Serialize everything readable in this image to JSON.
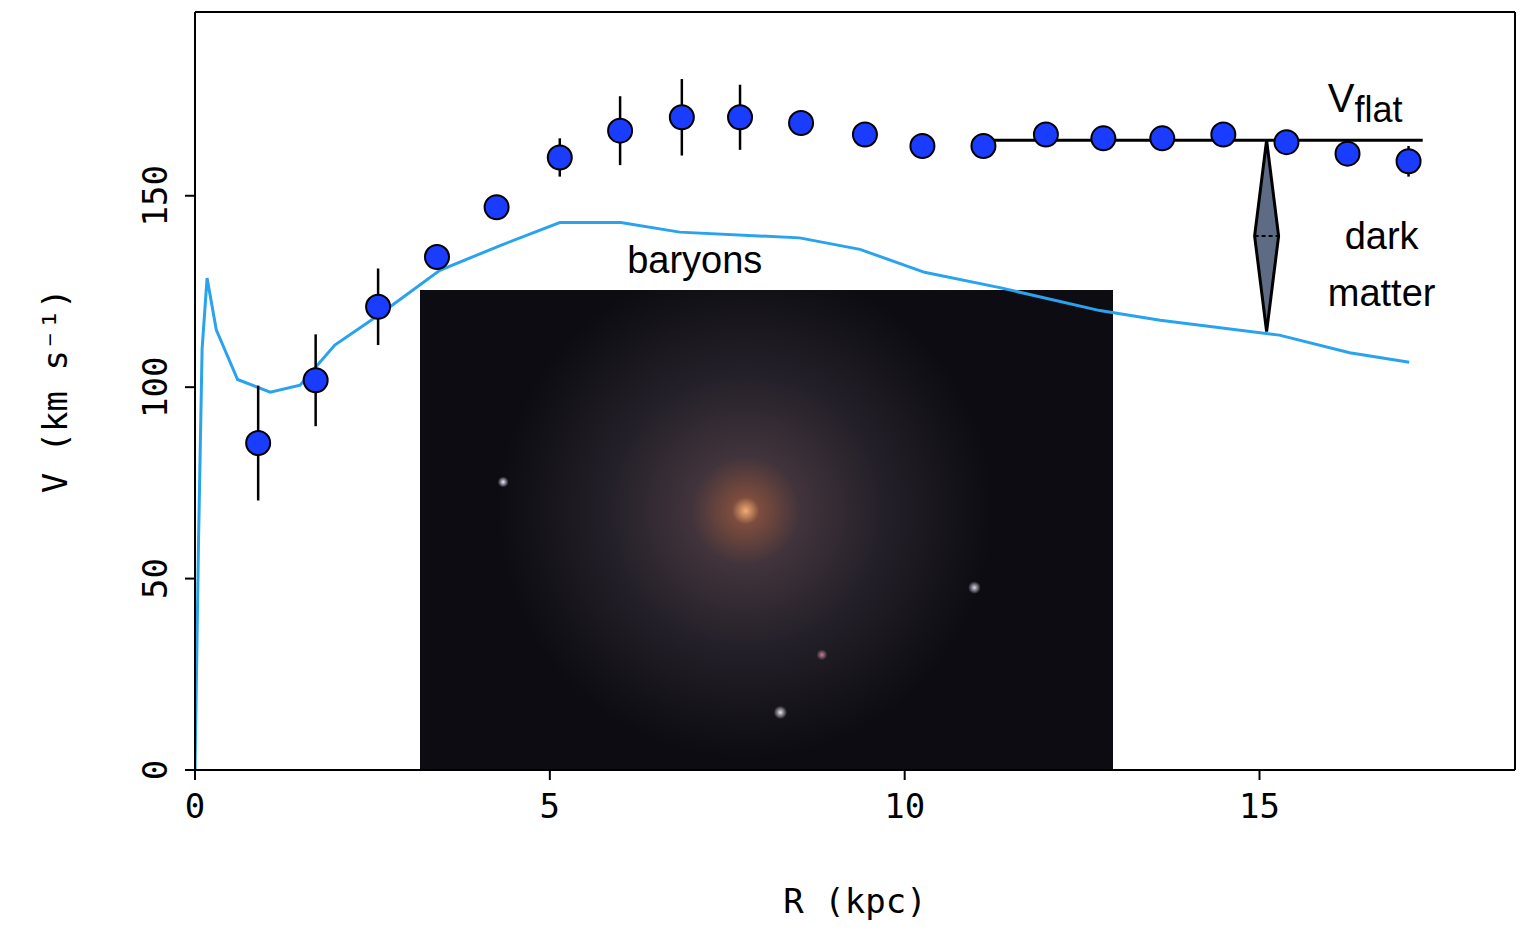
{
  "chart_data": {
    "type": "line",
    "x_label": "R (kpc)",
    "y_label": "V (km s⁻¹)",
    "xlim": [
      0,
      18.6
    ],
    "xticks": [
      0,
      5,
      10,
      15
    ],
    "ylim": [
      0,
      198
    ],
    "yticks": [
      0,
      50,
      100,
      150
    ],
    "grid": false,
    "series": [
      {
        "type": "scatter",
        "marker": "circle",
        "color": "#1a3cff",
        "x": [
          0.89,
          1.7,
          2.58,
          3.41,
          4.25,
          5.14,
          5.99,
          6.86,
          7.68,
          8.54,
          9.44,
          10.25,
          11.11,
          11.99,
          12.8,
          13.63,
          14.49,
          15.38,
          16.24,
          17.1
        ],
        "values": [
          85.4,
          101.8,
          121,
          134,
          147,
          160,
          167,
          170.5,
          170.5,
          169,
          166,
          163,
          163,
          166,
          165,
          165,
          166,
          164,
          161,
          159
        ],
        "errors": [
          15,
          12,
          10,
          2,
          2,
          5,
          9,
          10,
          8.5,
          2,
          2,
          2,
          2,
          2,
          2,
          2,
          2,
          2,
          3,
          4
        ]
      },
      {
        "name": "baryons",
        "type": "line",
        "color": "#2aa3ee",
        "x": [
          0,
          0.05,
          0.1,
          0.17,
          0.3,
          0.6,
          1.06,
          1.48,
          1.97,
          2.6,
          3.45,
          4.3,
          5.14,
          6.0,
          6.83,
          8.52,
          9.37,
          10.28,
          11.34,
          12.75,
          13.6,
          15.28,
          16.27,
          17.11
        ],
        "values": [
          0,
          60,
          110,
          128.5,
          115,
          102,
          98.7,
          100.5,
          111,
          119,
          130.5,
          137,
          143,
          143,
          140.5,
          139,
          136,
          130,
          126,
          120,
          117.5,
          113.6,
          109,
          106.5
        ]
      }
    ],
    "annotations": [
      {
        "text": "V",
        "subscript": "flat",
        "x": [
          11.1,
          17.3
        ],
        "y": 164.5
      },
      {
        "text": "dark matter",
        "x": 15.1,
        "y": [
          164.5,
          114.5
        ]
      }
    ]
  }
}
